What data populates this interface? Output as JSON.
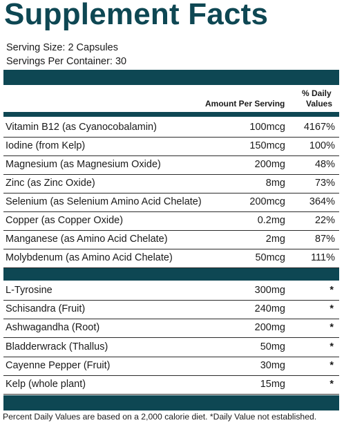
{
  "title": "Supplement Facts",
  "serving_size": "Serving Size: 2 Capsules",
  "servings_per_container": "Servings Per Container: 30",
  "column_headers": {
    "amount": "Amount Per Serving",
    "dv_line1": "% Daily",
    "dv_line2": "Values"
  },
  "vitamins_minerals": [
    {
      "name": "Vitamin B12 (as Cyanocobalamin)",
      "amount": "100mcg",
      "dv": "4167%"
    },
    {
      "name": "Iodine (from Kelp)",
      "amount": "150mcg",
      "dv": "100%"
    },
    {
      "name": "Magnesium (as Magnesium Oxide)",
      "amount": "200mg",
      "dv": "48%"
    },
    {
      "name": "Zinc (as Zinc Oxide)",
      "amount": "8mg",
      "dv": "73%"
    },
    {
      "name": "Selenium (as Selenium Amino Acid Chelate)",
      "amount": "200mcg",
      "dv": "364%"
    },
    {
      "name": "Copper (as Copper Oxide)",
      "amount": "0.2mg",
      "dv": "22%"
    },
    {
      "name": "Manganese (as Amino Acid Chelate)",
      "amount": "2mg",
      "dv": "87%"
    },
    {
      "name": "Molybdenum (as Amino Acid Chelate)",
      "amount": "50mcg",
      "dv": "111%"
    }
  ],
  "other_ingredients": [
    {
      "name": "L-Tyrosine",
      "amount": "300mg",
      "dv": "*"
    },
    {
      "name": "Schisandra (Fruit)",
      "amount": "240mg",
      "dv": "*"
    },
    {
      "name": "Ashwagandha (Root)",
      "amount": "200mg",
      "dv": "*"
    },
    {
      "name": "Bladderwrack (Thallus)",
      "amount": "50mg",
      "dv": "*"
    },
    {
      "name": "Cayenne Pepper (Fruit)",
      "amount": "30mg",
      "dv": "*"
    },
    {
      "name": "Kelp (whole plant)",
      "amount": "15mg",
      "dv": "*"
    }
  ],
  "footnote": "Percent Daily Values are based on a 2,000 calorie diet. *Daily Value not established.",
  "colors": {
    "brand": "#0e4753",
    "text": "#1a1a1a",
    "background": "#ffffff"
  }
}
